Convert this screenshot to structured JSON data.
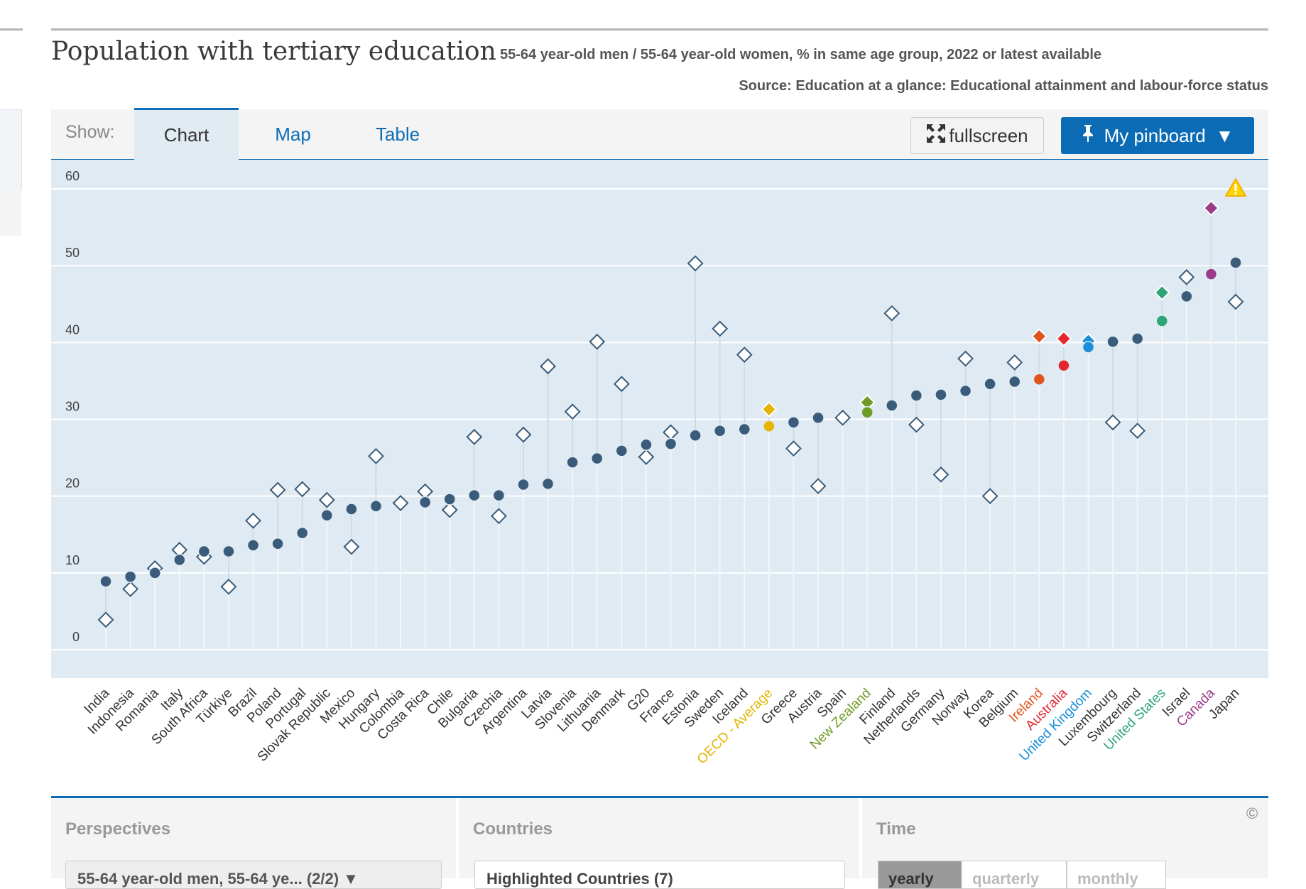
{
  "header": {
    "title": "Population with tertiary education",
    "subtitle": "55-64 year-old men / 55-64 year-old women, % in same age group, 2022 or latest available",
    "source": "Source: Education at a glance: Educational attainment and labour-force status"
  },
  "tabs": {
    "show_label": "Show:",
    "items": [
      {
        "label": "Chart",
        "active": true
      },
      {
        "label": "Map",
        "active": false
      },
      {
        "label": "Table",
        "active": false
      }
    ],
    "fullscreen_label": "fullscreen",
    "pinboard_label": "My pinboard"
  },
  "chart_data": {
    "type": "scatter",
    "title": "Population with tertiary education",
    "ylim": [
      0,
      60
    ],
    "yticks": [
      "0",
      "10",
      "20",
      "30",
      "40",
      "50",
      "60"
    ],
    "grid": true,
    "categories": [
      "India",
      "Indonesia",
      "Romania",
      "Italy",
      "South Africa",
      "Türkiye",
      "Brazil",
      "Poland",
      "Portugal",
      "Slovak Republic",
      "Mexico",
      "Hungary",
      "Colombia",
      "Costa Rica",
      "Chile",
      "Bulgaria",
      "Czechia",
      "Argentina",
      "Latvia",
      "Slovenia",
      "Lithuania",
      "Denmark",
      "G20",
      "France",
      "Estonia",
      "Sweden",
      "Iceland",
      "OECD - Average",
      "Greece",
      "Austria",
      "Spain",
      "New Zealand",
      "Finland",
      "Netherlands",
      "Germany",
      "Norway",
      "Korea",
      "Belgium",
      "Ireland",
      "Australia",
      "United Kingdom",
      "Luxembourg",
      "Switzerland",
      "United States",
      "Israel",
      "Canada",
      "Japan"
    ],
    "series": [
      {
        "name": "55-64 year-old men",
        "marker": "circle",
        "values": [
          8.9,
          9.5,
          10.0,
          11.7,
          12.8,
          12.8,
          13.6,
          13.8,
          15.2,
          17.5,
          18.3,
          18.7,
          null,
          19.2,
          19.6,
          20.1,
          20.1,
          21.5,
          21.6,
          24.4,
          24.9,
          25.9,
          26.7,
          26.8,
          27.9,
          28.5,
          28.7,
          29.1,
          29.6,
          30.2,
          null,
          30.9,
          31.8,
          33.1,
          33.2,
          33.7,
          34.6,
          34.9,
          35.2,
          37.0,
          39.4,
          40.1,
          40.5,
          42.8,
          46.0,
          48.9,
          50.4
        ]
      },
      {
        "name": "55-64 year-old women",
        "marker": "diamond",
        "values": [
          3.9,
          7.9,
          10.6,
          13.0,
          12.1,
          8.2,
          16.8,
          20.8,
          20.9,
          19.5,
          13.4,
          25.2,
          19.1,
          20.6,
          18.2,
          27.7,
          17.4,
          28.0,
          36.9,
          31.0,
          40.1,
          34.6,
          25.1,
          28.3,
          50.3,
          41.8,
          38.4,
          31.3,
          26.2,
          21.3,
          30.2,
          32.2,
          43.8,
          29.3,
          22.8,
          37.9,
          20.0,
          37.4,
          40.8,
          40.5,
          40.2,
          29.6,
          28.5,
          46.5,
          48.5,
          57.5,
          45.3
        ]
      }
    ],
    "highlights": {
      "OECD - Average": "#e3b505",
      "New Zealand": "#6f9c25",
      "Ireland": "#e0531f",
      "Australia": "#e5262f",
      "United Kingdom": "#1b8fdb",
      "United States": "#2ea577",
      "Canada": "#983b88"
    },
    "default_color": "#3a5c7a",
    "warning_on": "Japan"
  },
  "footer": {
    "perspectives_label": "Perspectives",
    "perspectives_value": "55-64 year-old men, 55-64 ye...  (2/2) ▼",
    "countries_label": "Countries",
    "countries_value": "Highlighted Countries (7)",
    "time_label": "Time",
    "time_options": [
      "yearly",
      "quarterly",
      "monthly"
    ],
    "copyright": "©"
  }
}
